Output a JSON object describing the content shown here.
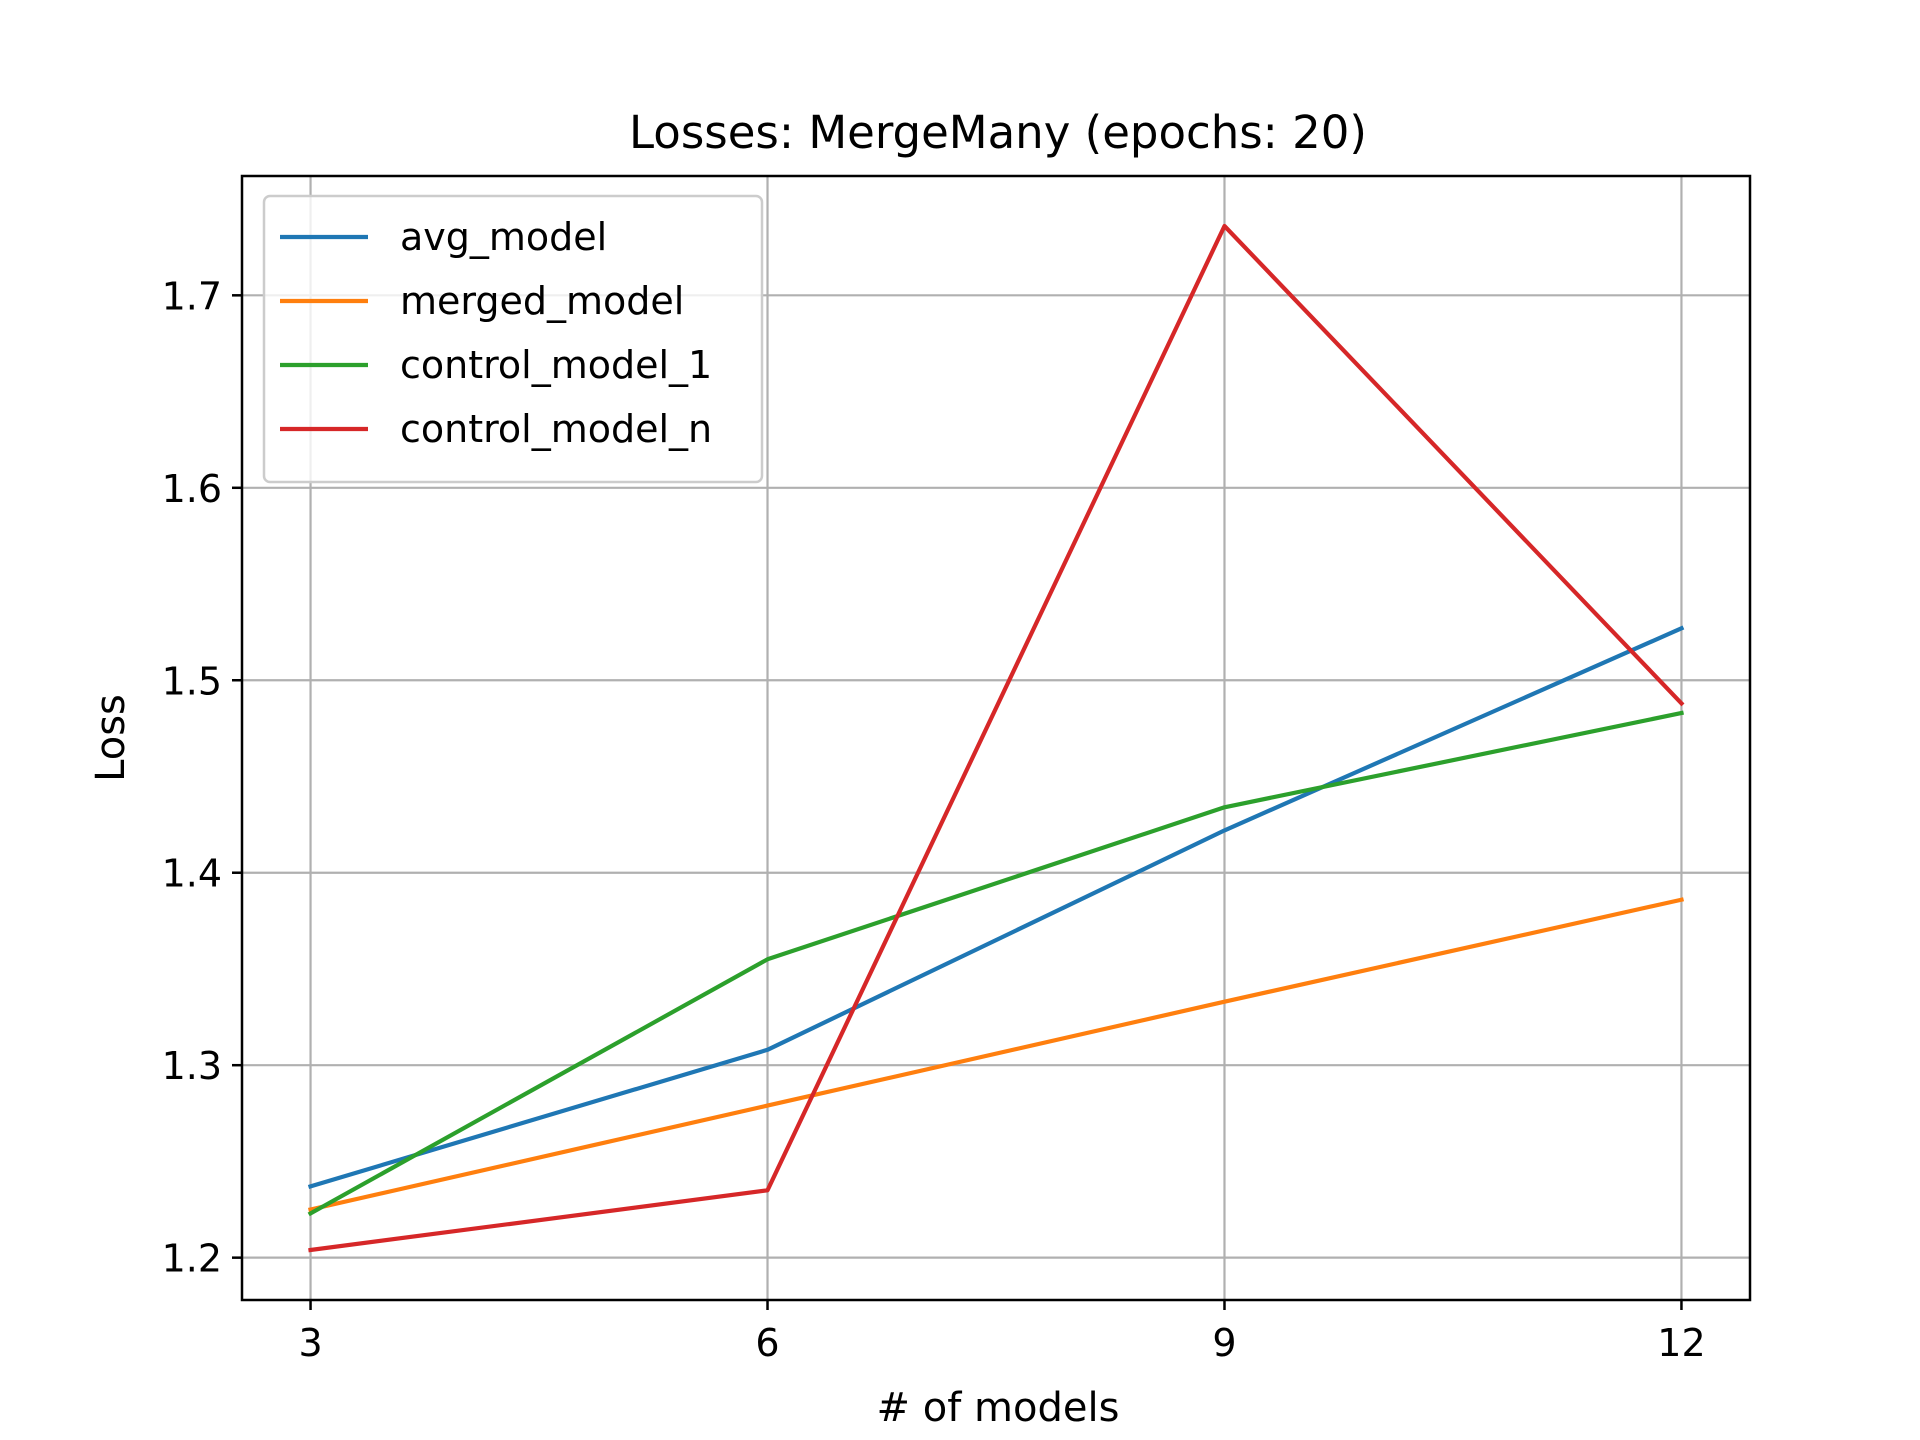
{
  "chart_data": {
    "type": "line",
    "title": "Losses: MergeMany (epochs: 20)",
    "xlabel": "# of models",
    "ylabel": "Loss",
    "x": [
      3,
      6,
      9,
      12
    ],
    "xticks": [
      3,
      6,
      9,
      12
    ],
    "yticks": [
      1.2,
      1.3,
      1.4,
      1.5,
      1.6,
      1.7
    ],
    "xlim": [
      2.55,
      12.45
    ],
    "ylim": [
      1.178,
      1.762
    ],
    "grid": true,
    "legend_position": "upper-left",
    "series": [
      {
        "name": "avg_model",
        "color": "#1f77b4",
        "values": [
          1.237,
          1.308,
          1.422,
          1.527
        ]
      },
      {
        "name": "merged_model",
        "color": "#ff7f0e",
        "values": [
          1.225,
          1.279,
          1.333,
          1.386
        ]
      },
      {
        "name": "control_model_1",
        "color": "#2ca02c",
        "values": [
          1.223,
          1.355,
          1.434,
          1.483
        ]
      },
      {
        "name": "control_model_n",
        "color": "#d62728",
        "values": [
          1.204,
          1.235,
          1.736,
          1.488
        ]
      }
    ]
  }
}
